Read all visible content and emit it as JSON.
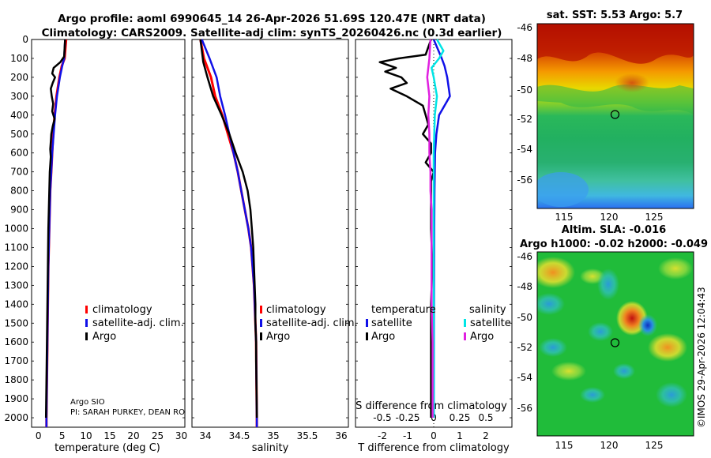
{
  "title_line1": "Argo profile: aoml 6990645_14 26-Apr-2026 51.69S 120.47E (NRT data)",
  "title_line2": "Climatology: CARS2009. Satellite-adj clim: synTS_20260426.nc (0.3d earlier)",
  "colors": {
    "climatology": "#ff0000",
    "satellite": "#1010e8",
    "argo": "#000000",
    "sat_salinity": "#00e5e5",
    "argo_salinity": "#e020e0"
  },
  "chart_data": [
    {
      "type": "line",
      "name": "temperature",
      "xlabel": "temperature (deg C)",
      "ylabel": "",
      "xlim": [
        -1,
        31
      ],
      "ylim": [
        0,
        2050
      ],
      "xticks": [
        0,
        5,
        10,
        15,
        20,
        25,
        30
      ],
      "yticks": [
        0,
        100,
        200,
        300,
        400,
        500,
        600,
        700,
        800,
        900,
        1000,
        1100,
        1200,
        1300,
        1400,
        1500,
        1600,
        1700,
        1800,
        1900,
        2000
      ],
      "legend": [
        "climatology",
        "satellite-adj. clim.",
        "Argo"
      ],
      "series": [
        {
          "name": "climatology",
          "depth": [
            0,
            100,
            140,
            200,
            300,
            400,
            500,
            600,
            700,
            800,
            1000,
            1200,
            1400,
            1600,
            1800,
            2000,
            2050
          ],
          "values": [
            6.2,
            5.9,
            5.3,
            4.8,
            4.2,
            3.8,
            3.5,
            3.3,
            3.1,
            2.9,
            2.7,
            2.5,
            2.4,
            2.3,
            2.2,
            2.1,
            2.1
          ]
        },
        {
          "name": "satellite-adj. clim.",
          "depth": [
            0,
            100,
            140,
            200,
            300,
            400,
            500,
            600,
            700,
            800,
            1000,
            1200,
            1400,
            1600,
            1800,
            2000,
            2050
          ],
          "values": [
            6.0,
            5.8,
            5.4,
            4.9,
            4.3,
            3.9,
            3.6,
            3.3,
            3.1,
            2.9,
            2.7,
            2.5,
            2.4,
            2.3,
            2.2,
            2.1,
            2.1
          ]
        },
        {
          "name": "Argo",
          "depth": [
            0,
            90,
            120,
            150,
            180,
            200,
            230,
            260,
            300,
            340,
            380,
            420,
            460,
            500,
            540,
            580,
            620,
            700,
            800,
            900,
            1000,
            1200,
            1400,
            1600,
            1800,
            2000
          ],
          "values": [
            6.0,
            5.8,
            5.0,
            3.6,
            3.3,
            3.9,
            3.4,
            3.0,
            3.2,
            3.5,
            3.3,
            3.8,
            3.4,
            3.1,
            3.0,
            2.9,
            3.0,
            2.8,
            2.7,
            2.6,
            2.5,
            2.4,
            2.3,
            2.2,
            2.1,
            2.0
          ]
        }
      ]
    },
    {
      "type": "line",
      "name": "salinity",
      "xlabel": "salinity",
      "ylabel": "",
      "xlim": [
        33.83,
        36.05
      ],
      "ylim": [
        0,
        2050
      ],
      "xticks": [
        "34",
        "34.5",
        "35",
        "35.5",
        "36"
      ],
      "legend": [
        "climatology",
        "satellite-adj. clim.",
        "Argo"
      ],
      "series": [
        {
          "name": "climatology",
          "depth": [
            0,
            100,
            200,
            300,
            400,
            500,
            600,
            700,
            800,
            900,
            1000,
            1100,
            1200,
            1300,
            1400,
            1500,
            1600,
            1800,
            2000,
            2050
          ],
          "values": [
            33.95,
            34.0,
            34.1,
            34.16,
            34.26,
            34.34,
            34.42,
            34.48,
            34.53,
            34.58,
            34.63,
            34.67,
            34.69,
            34.71,
            34.72,
            34.73,
            34.74,
            34.745,
            34.75,
            34.75
          ]
        },
        {
          "name": "satellite-adj. clim.",
          "depth": [
            0,
            100,
            200,
            300,
            400,
            500,
            600,
            700,
            800,
            900,
            1000,
            1100,
            1200,
            1300,
            1400,
            1500,
            1600,
            1800,
            2000,
            2050
          ],
          "values": [
            33.97,
            34.08,
            34.18,
            34.23,
            34.3,
            34.36,
            34.42,
            34.48,
            34.53,
            34.58,
            34.63,
            34.67,
            34.69,
            34.71,
            34.72,
            34.73,
            34.74,
            34.745,
            34.75,
            34.75
          ]
        },
        {
          "name": "Argo",
          "depth": [
            0,
            60,
            120,
            200,
            300,
            400,
            500,
            600,
            700,
            800,
            900,
            1000,
            1100,
            1200,
            1300,
            1400,
            1500,
            1600,
            1700,
            1800,
            2000
          ],
          "values": [
            33.95,
            33.97,
            33.99,
            34.05,
            34.13,
            34.25,
            34.36,
            34.45,
            34.55,
            34.62,
            34.66,
            34.68,
            34.7,
            34.71,
            34.72,
            34.73,
            34.73,
            34.74,
            34.74,
            34.745,
            34.75
          ]
        }
      ]
    },
    {
      "type": "line",
      "name": "difference",
      "xlabel": "T difference from climatology",
      "xlim": [
        -2.9,
        2.9
      ],
      "ylim": [
        0,
        2050
      ],
      "xticks": [
        "-2",
        "-1",
        "0",
        "1",
        "2"
      ],
      "upper_label": "S difference from climatology",
      "upper_ticks": [
        "-0.5",
        "-0.25",
        "0",
        "0.25",
        "0.5"
      ],
      "legend_titles": [
        "temperature",
        "salinity"
      ],
      "legend": [
        "satellite",
        "Argo",
        "satellite",
        "Argo"
      ],
      "series": [
        {
          "name": "temperature satellite",
          "depth": [
            0,
            100,
            140,
            200,
            300,
            400,
            500,
            600,
            800,
            1000,
            1500,
            2000
          ],
          "values": [
            0.0,
            0.3,
            0.4,
            0.5,
            0.6,
            0.2,
            0.1,
            0.05,
            0.03,
            0.02,
            0.01,
            0.0
          ]
        },
        {
          "name": "temperature Argo",
          "depth": [
            0,
            80,
            100,
            120,
            150,
            170,
            200,
            230,
            260,
            300,
            350,
            400,
            450,
            500,
            550,
            600,
            650,
            700,
            750,
            800,
            900,
            1000,
            1200,
            1400,
            1600,
            1800,
            2000
          ],
          "values": [
            -0.1,
            -0.3,
            -1.3,
            -2.0,
            -1.4,
            -1.8,
            -1.2,
            -1.0,
            -1.6,
            -1.0,
            -0.4,
            -0.3,
            -0.2,
            -0.4,
            -0.1,
            -0.1,
            -0.3,
            0.0,
            -0.1,
            -0.1,
            -0.1,
            -0.1,
            -0.05,
            -0.1,
            -0.1,
            -0.1,
            -0.1
          ]
        },
        {
          "name": "salinity satellite",
          "depth": [
            0,
            60,
            100,
            150,
            200,
            300,
            400,
            600,
            800,
            1000,
            1200,
            1500,
            2000
          ],
          "values": [
            0.03,
            0.09,
            0.05,
            -0.02,
            0.0,
            0.03,
            0.01,
            0.0,
            0.0,
            0.0,
            0.0,
            0.0,
            0.0
          ]
        },
        {
          "name": "salinity Argo",
          "depth": [
            0,
            100,
            200,
            300,
            400,
            500,
            600,
            700,
            800,
            900,
            1000,
            1200,
            1400,
            1600,
            1800,
            2000
          ],
          "values": [
            -0.03,
            -0.04,
            -0.06,
            -0.04,
            -0.05,
            -0.04,
            -0.04,
            -0.03,
            -0.03,
            -0.02,
            -0.02,
            -0.02,
            -0.02,
            -0.01,
            -0.01,
            -0.01
          ]
        }
      ]
    },
    {
      "type": "heatmap",
      "name": "sst-map",
      "title": "sat. SST: 5.53 Argo: 5.7",
      "xticks": [
        "115",
        "120",
        "125"
      ],
      "yticks": [
        "-46",
        "-48",
        "-50",
        "-52",
        "-54",
        "-56"
      ],
      "float_lon": 120.47,
      "float_lat": -51.69
    },
    {
      "type": "heatmap",
      "name": "sla-map",
      "title_line1": "Altim. SLA: -0.016",
      "title_line2": "Argo h1000: -0.02 h2000: -0.049",
      "xticks": [
        "115",
        "120",
        "125"
      ],
      "yticks": [
        "-46",
        "-48",
        "-50",
        "-52",
        "-54",
        "-56"
      ],
      "float_lon": 120.47,
      "float_lat": -51.69
    }
  ],
  "credit": {
    "line1": "Argo SIO",
    "line2": "PI: SARAH PURKEY, DEAN RO"
  },
  "stamp": "©IMOS 29-Apr-2026 12:04:43"
}
